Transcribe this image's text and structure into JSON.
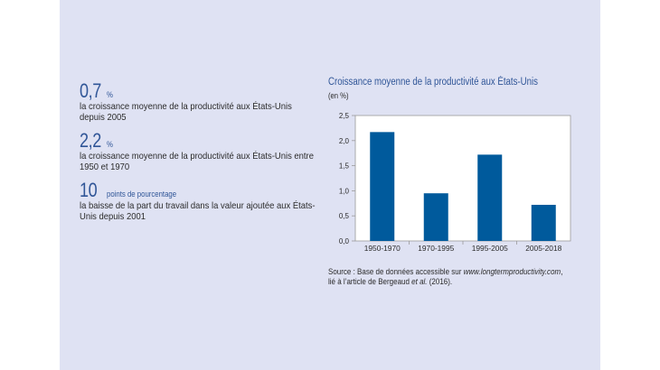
{
  "stats": [
    {
      "value": "0,7",
      "unit": "%",
      "text": "la croissance moyenne de la productivité aux États-Unis depuis 2005"
    },
    {
      "value": "2,2",
      "unit": "%",
      "text": "la croissance moyenne de la productivité aux États-Unis entre 1950 et 1970"
    },
    {
      "value": "10",
      "unit": "points de pourcentage",
      "text": "la baisse de la part du travail dans la valeur ajoutée aux États-Unis depuis 2001"
    }
  ],
  "source": {
    "prefix": "Source : Base de données accessible sur ",
    "url": "www.longtermproductivity.com",
    "middle": ", lié à l’article de Bergeaud ",
    "etal": "et al.",
    "suffix": " (2016)."
  },
  "colors": {
    "bar": "#005a9c",
    "title": "#2f5597",
    "panel": "#dfe2f3"
  },
  "chart_data": {
    "type": "bar",
    "title": "Croissance moyenne de la productivité aux États-Unis",
    "ylabel": "(en %)",
    "xlabel": "",
    "categories": [
      "1950-1970",
      "1970-1995",
      "1995-2005",
      "2005-2018"
    ],
    "values": [
      2.17,
      0.95,
      1.72,
      0.72
    ],
    "ylim": [
      0,
      2.5
    ],
    "yticks": [
      "0,0",
      "0,5",
      "1,0",
      "1,5",
      "2,0",
      "2,5"
    ],
    "grid": false,
    "legend": "none"
  }
}
